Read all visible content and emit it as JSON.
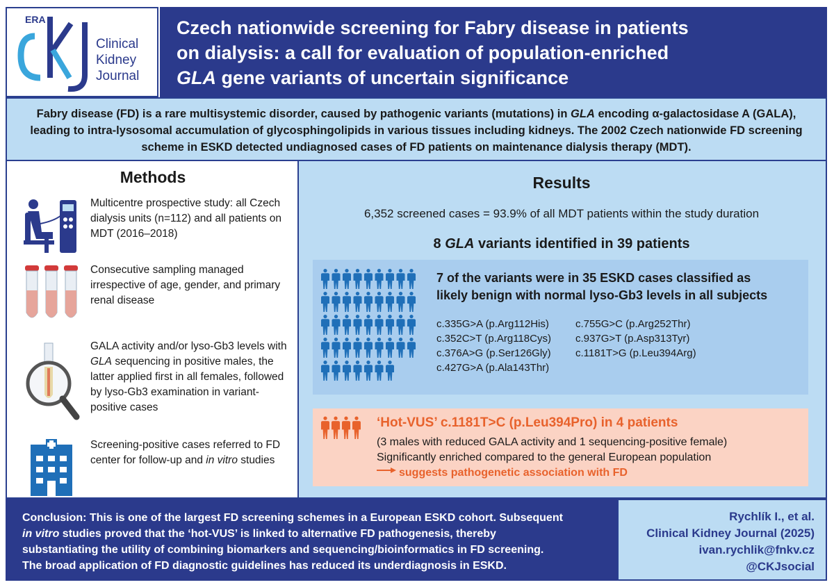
{
  "header": {
    "era_label": "ERA",
    "logo_letters": "CKJ",
    "journal_name_line1": "Clinical",
    "journal_name_line2": "Kidney",
    "journal_name_line3": "Journal",
    "title_line1": "Czech nationwide screening for Fabry disease in patients",
    "title_line2": "on dialysis: a call for evaluation of population-enriched",
    "title_line3_gene": "GLA",
    "title_line3_rest": " gene variants of uncertain significance"
  },
  "intro": {
    "part1": "Fabry disease (FD) is a rare multisystemic disorder, caused by pathogenic variants (mutations) in ",
    "gene": "GLA",
    "part2": " encoding α-galactosidase A (GALA), leading to intra-lysosomal accumulation of glycosphingolipids in various tissues including kidneys. The 2002 Czech nationwide FD screening scheme in ESKD detected undiagnosed cases of FD patients on maintenance dialysis therapy (MDT)."
  },
  "methods": {
    "title": "Methods",
    "item1": "Multicentre prospective study: all Czech dialysis units (n=112) and all patients on MDT (2016–2018)",
    "item2": "Consecutive sampling managed irrespective of age, gender, and primary renal disease",
    "item3_a": "GALA activity and/or lyso-Gb3 levels with ",
    "item3_gene": "GLA",
    "item3_b": " sequencing in positive males, the latter applied first in all females, followed by lyso-Gb3 examination in variant-positive cases",
    "item4_a": "Screening-positive cases referred to FD center for follow-up and ",
    "item4_italic": "in vitro",
    "item4_b": " studies"
  },
  "results": {
    "title": "Results",
    "screened": "6,352 screened cases = 93.9% of all MDT patients within the study duration",
    "variants_a": "8 ",
    "variants_gene": "GLA",
    "variants_b": " variants identified in 39 patients",
    "benign_heading_line1": "7 of the variants were in 35 ESKD cases classified as",
    "benign_heading_line2": "likely benign with normal lyso-Gb3 levels in all subjects",
    "variants_col1": [
      "c.335G>A (p.Arg112His)",
      "c.352C>T (p.Arg118Cys)",
      "c.376A>G (p.Ser126Gly)",
      "c.427G>A (p.Ala143Thr)"
    ],
    "variants_col2": [
      "c.755G>C (p.Arg252Thr)",
      "c.937G>T (p.Asp313Tyr)",
      "c.1181T>G (p.Leu394Arg)"
    ],
    "hot_heading": "‘Hot-VUS’ c.1181T>C (p.Leu394Pro) in 4 patients",
    "hot_line1": "(3 males with reduced GALA activity and 1 sequencing-positive female)",
    "hot_line2": "Significantly enriched compared to the general European population",
    "hot_line3": "suggests pathogenetic association with FD"
  },
  "conclusion": {
    "line1": "Conclusion: This is one of the largest FD screening schemes in a European ESKD cohort. Subsequent",
    "line2_italic": "in vitro",
    "line2_rest": " studies proved that the ‘hot-VUS’ is linked to alternative FD pathogenesis, thereby",
    "line3": "substantiating the utility of combining biomarkers and sequencing/bioinformatics in FD screening.",
    "line4": "The broad application of FD diagnostic guidelines has reduced its underdiagnosis in ESKD."
  },
  "citation": {
    "authors": "Rychlík I., et al.",
    "journal": "Clinical Kidney Journal (2025)",
    "email": "ivan.rychlik@fnkv.cz",
    "handle": "@CKJsocial"
  },
  "colors": {
    "navy": "#2b3a8c",
    "light_blue": "#bcdcf3",
    "icon_blue": "#1f6fb8",
    "orange": "#e8622c",
    "salmon": "#fbd3c4"
  }
}
